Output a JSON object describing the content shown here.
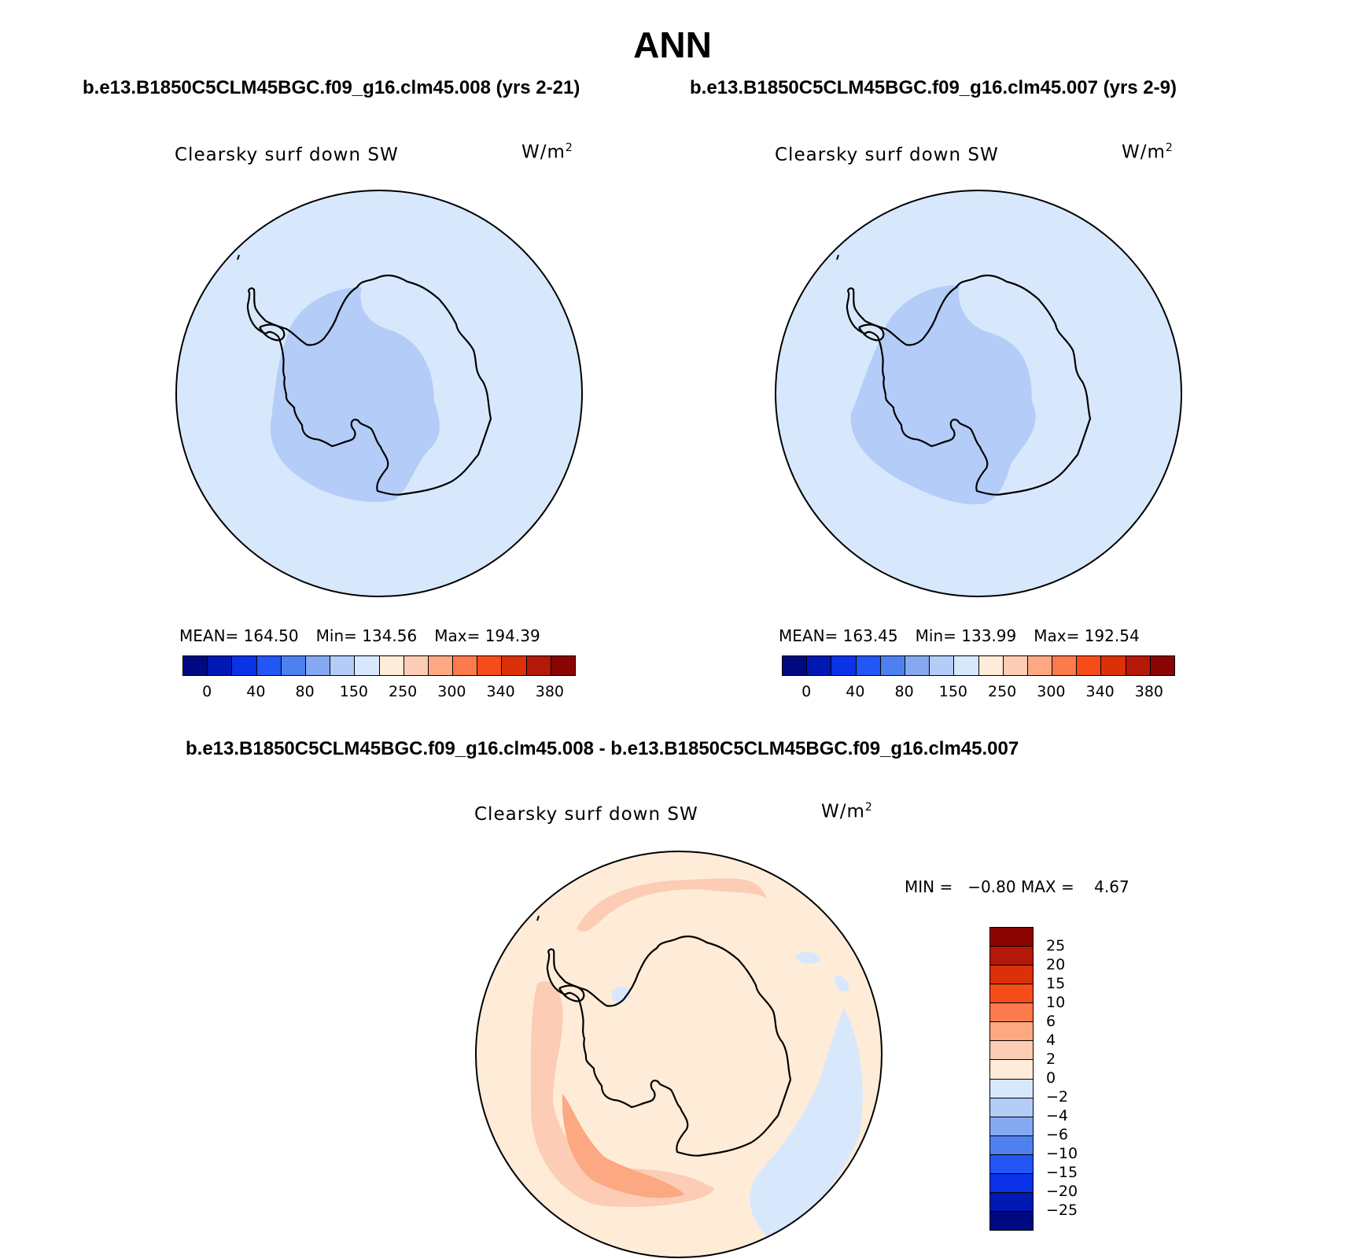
{
  "title": "ANN",
  "panels": [
    {
      "case_title": "b.e13.B1850C5CLM45BGC.f09_g16.clm45.008 (yrs 2-21)",
      "label": "Clearsky surf down SW",
      "units_base": "W/m",
      "units_exp": "2",
      "stats": {
        "mean": "MEAN= 164.50",
        "min": "Min= 134.56",
        "max": "Max= 194.39"
      }
    },
    {
      "case_title": "b.e13.B1850C5CLM45BGC.f09_g16.clm45.007 (yrs 2-9)",
      "label": "Clearsky surf down SW",
      "units_base": "W/m",
      "units_exp": "2",
      "stats": {
        "mean": "MEAN= 163.45",
        "min": "Min= 133.99",
        "max": "Max= 192.54"
      }
    }
  ],
  "diff": {
    "case_title": "b.e13.B1850C5CLM45BGC.f09_g16.clm45.008 - b.e13.B1850C5CLM45BGC.f09_g16.clm45.007",
    "label": "Clearsky surf down SW",
    "units_base": "W/m",
    "units_exp": "2",
    "minmax": "MIN =   −0.80 MAX =    4.67"
  },
  "colorbar_abs": {
    "colors": [
      "#000a80",
      "#0018b4",
      "#0a32e6",
      "#2256f5",
      "#4f80f0",
      "#86a8f0",
      "#b4ccf8",
      "#d8e8fc",
      "#feecd8",
      "#fcccb4",
      "#fca882",
      "#fc7a4c",
      "#f64c1a",
      "#dc3008",
      "#b41808",
      "#8a0404"
    ],
    "ticks": [
      "0",
      "40",
      "80",
      "150",
      "250",
      "300",
      "340",
      "380"
    ]
  },
  "colorbar_diff": {
    "colors": [
      "#8a0404",
      "#b41808",
      "#dc3008",
      "#f64c1a",
      "#fc7a4c",
      "#fca882",
      "#fcccb4",
      "#feecd8",
      "#d8e8fc",
      "#b4ccf8",
      "#86a8f0",
      "#4f80f0",
      "#2256f5",
      "#0a32e6",
      "#0018b4",
      "#000a80"
    ],
    "ticks": [
      "25",
      "20",
      "15",
      "10",
      "6",
      "4",
      "2",
      "0",
      "−2",
      "−4",
      "−6",
      "−10",
      "−15",
      "−20",
      "−25"
    ]
  },
  "map_colors": {
    "ocean_abs": "#d8e8fc",
    "interior_abs": "#b4ccf8",
    "diff_base": "#feecd8",
    "diff_pos": "#fcccb4",
    "diff_pos_strong": "#fca882",
    "diff_neg": "#d8e8fc"
  }
}
